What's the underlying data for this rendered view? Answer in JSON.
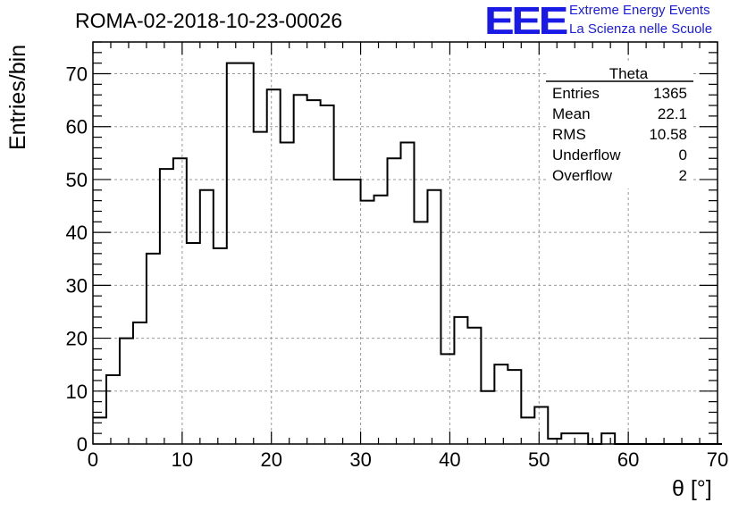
{
  "header": {
    "run_title": "ROMA-02-2018-10-23-00026",
    "logo_text": "EEE",
    "logo_line1": "Extreme Energy Events",
    "logo_line2": "La Scienza nelle Scuole",
    "logo_color": "#1a1ae6"
  },
  "stats": {
    "title": "Theta",
    "rows": [
      {
        "label": "Entries",
        "value": "1365"
      },
      {
        "label": "Mean",
        "value": "22.1"
      },
      {
        "label": "RMS",
        "value": "10.58"
      },
      {
        "label": "Underflow",
        "value": "0"
      },
      {
        "label": "Overflow",
        "value": "2"
      }
    ]
  },
  "chart_data": {
    "type": "histogram",
    "xlabel": "θ [°]",
    "ylabel": "Entries/bin",
    "xlim": [
      0,
      70
    ],
    "ylim": [
      0,
      76
    ],
    "x_ticks": [
      0,
      10,
      20,
      30,
      40,
      50,
      60,
      70
    ],
    "y_ticks": [
      0,
      10,
      20,
      30,
      40,
      50,
      60,
      70
    ],
    "grid": true,
    "bin_width": 1.5,
    "bin_start": 0,
    "values": [
      5,
      13,
      20,
      23,
      36,
      52,
      54,
      38,
      48,
      37,
      72,
      72,
      59,
      67,
      57,
      66,
      65,
      64,
      50,
      50,
      46,
      47,
      54,
      57,
      42,
      48,
      17,
      24,
      22,
      10,
      15,
      14,
      5,
      7,
      1,
      2,
      2,
      0,
      2,
      0,
      0,
      0,
      0,
      0,
      0,
      0,
      0
    ]
  }
}
